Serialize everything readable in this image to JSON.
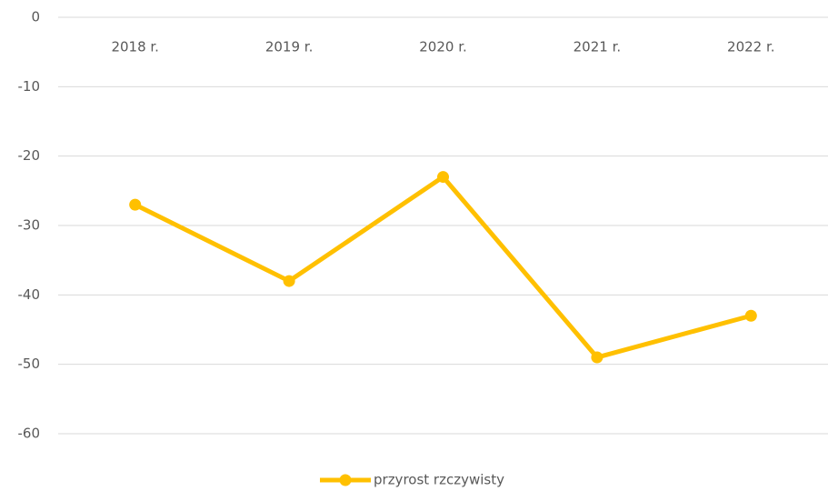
{
  "chart_data": {
    "type": "line",
    "categories": [
      "2018 r.",
      "2019 r.",
      "2020 r.",
      "2021 r.",
      "2022 r."
    ],
    "series": [
      {
        "name": "przyrost rzczywisty",
        "color": "#FFC000",
        "values": [
          -27,
          -38,
          -23,
          -49,
          -43
        ]
      }
    ],
    "ylim": [
      -60,
      0
    ],
    "yticks": [
      0,
      -10,
      -20,
      -30,
      -40,
      -50,
      -60
    ],
    "grid": true
  }
}
